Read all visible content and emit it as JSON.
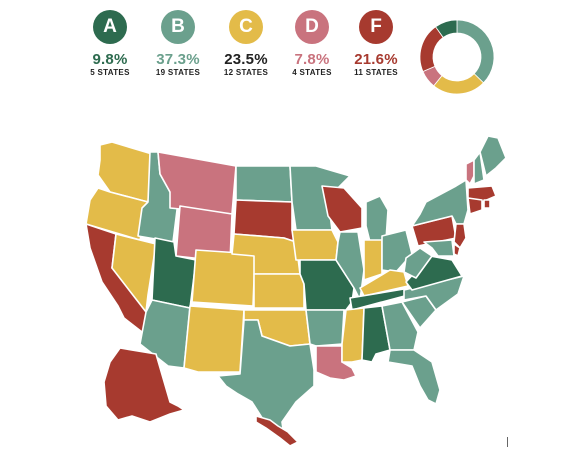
{
  "colors": {
    "A": "#2d6b4f",
    "B": "#6ba08d",
    "C": "#e3bb49",
    "D": "#c9737e",
    "F": "#a73a2f"
  },
  "grades": [
    {
      "letter": "A",
      "percent": "9.8%",
      "states": "5 STATES",
      "fraction": 0.098
    },
    {
      "letter": "B",
      "percent": "37.3%",
      "states": "19 STATES",
      "fraction": 0.373
    },
    {
      "letter": "C",
      "percent": "23.5%",
      "states": "12 STATES",
      "fraction": 0.235
    },
    {
      "letter": "D",
      "percent": "7.8%",
      "states": "4 STATES",
      "fraction": 0.078
    },
    {
      "letter": "F",
      "percent": "21.6%",
      "states": "11 STATES",
      "fraction": 0.216
    }
  ],
  "state_grades": {
    "WA": "C",
    "OR": "C",
    "CA": "F",
    "NV": "C",
    "ID": "B",
    "MT": "D",
    "WY": "D",
    "UT": "A",
    "AZ": "B",
    "NM": "C",
    "CO": "C",
    "ND": "B",
    "SD": "F",
    "NE": "C",
    "KS": "C",
    "OK": "C",
    "TX": "B",
    "MN": "B",
    "IA": "C",
    "MO": "A",
    "AR": "B",
    "LA": "D",
    "WI": "F",
    "IL": "B",
    "MI": "B",
    "IN": "C",
    "OH": "B",
    "KY": "C",
    "TN": "A",
    "MS": "C",
    "AL": "A",
    "GA": "B",
    "FL": "B",
    "SC": "B",
    "NC": "B",
    "VA": "A",
    "WV": "B",
    "PA": "F",
    "NY": "B",
    "VT": "D",
    "NH": "B",
    "ME": "B",
    "MA": "F",
    "RI": "F",
    "CT": "F",
    "NJ": "F",
    "DE": "F",
    "MD": "B",
    "AK": "F",
    "HI": "F"
  }
}
